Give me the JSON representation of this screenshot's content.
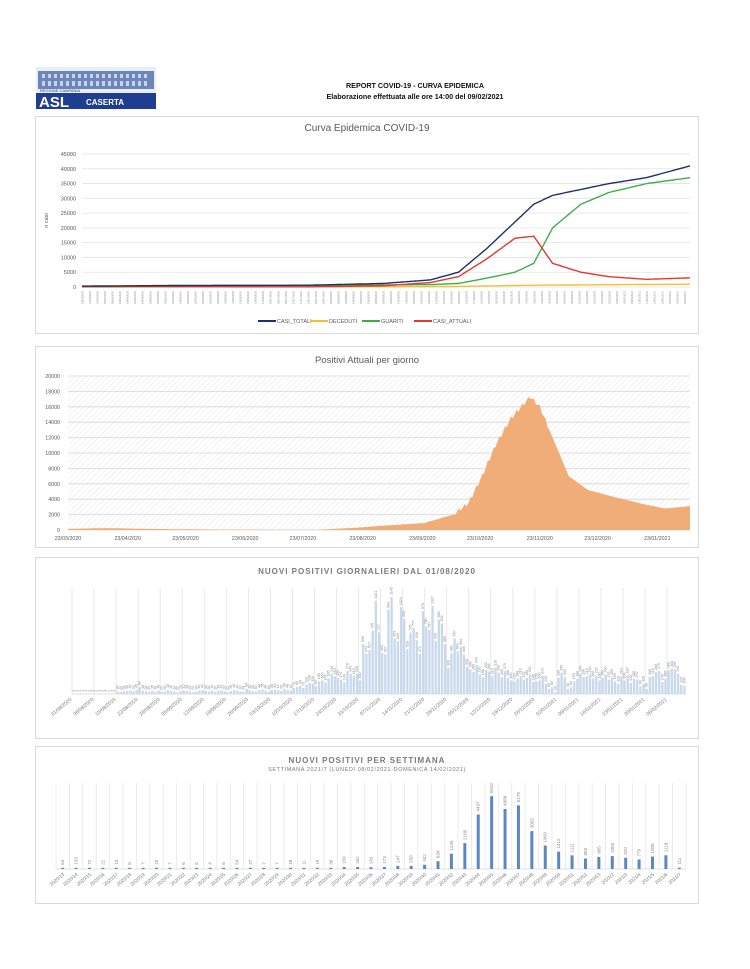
{
  "header": {
    "logo": {
      "top_text": "REGIONE CAMPANIA",
      "asl": "ASL",
      "city": "CASERTA"
    },
    "title": "REPORT COVID-19 - CURVA EPIDEMICA",
    "subtitle": "Elaborazione effettuata alle ore 14:00 del 09/02/2021"
  },
  "colors": {
    "casi_totali": "#1f2f6b",
    "deceduti": "#f2c037",
    "guariti": "#3fae49",
    "casi_attuali": "#e03a2f",
    "area_fill": "#f0ad78",
    "daily_bar": "#c9d9ec",
    "weekly_bar": "#5b88c4",
    "logo_blue": "#1f3e8f"
  },
  "chart_data": [
    {
      "id": "curva",
      "type": "line",
      "title": "Curva Epidemica COVID-19",
      "ylabel": "n casi",
      "ylim": [
        0,
        45000
      ],
      "yticks": [
        0,
        5000,
        10000,
        15000,
        20000,
        25000,
        30000,
        35000,
        40000,
        45000
      ],
      "x_start": "23/03/2020",
      "x_end": "09/02/2021",
      "x_tick_step_days": 4,
      "legend": [
        "CASI_TOTALI",
        "DECEDUTI",
        "GUARITI",
        "CASI_ATTUALI"
      ],
      "legend_position": "bottom",
      "series_keypoints_day_index": [
        0,
        60,
        120,
        160,
        185,
        200,
        215,
        230,
        240,
        250,
        265,
        280,
        300,
        323
      ],
      "series": [
        {
          "name": "CASI_TOTALI",
          "values": [
            300,
            550,
            600,
            1200,
            2400,
            5000,
            13000,
            22000,
            28000,
            31000,
            33000,
            35000,
            37000,
            41000
          ]
        },
        {
          "name": "DECEDUTI",
          "values": [
            20,
            60,
            70,
            90,
            120,
            200,
            350,
            500,
            600,
            650,
            700,
            780,
            850,
            950
          ]
        },
        {
          "name": "GUARITI",
          "values": [
            100,
            400,
            500,
            700,
            800,
            1200,
            3000,
            5000,
            8000,
            20000,
            28000,
            32000,
            35000,
            37000
          ]
        },
        {
          "name": "CASI_ATTUALI",
          "values": [
            180,
            100,
            50,
            400,
            1500,
            3500,
            9500,
            16500,
            17200,
            8000,
            5000,
            3500,
            2600,
            3100
          ]
        }
      ]
    },
    {
      "id": "attuali",
      "type": "area",
      "title": "Positivi Attuali per giorno",
      "ylim": [
        0,
        20000
      ],
      "yticks": [
        0,
        2000,
        4000,
        6000,
        8000,
        10000,
        12000,
        14000,
        16000,
        18000,
        20000
      ],
      "xticks": [
        "23/03/2020",
        "23/04/2020",
        "23/05/2020",
        "23/06/2020",
        "23/07/2020",
        "23/08/2020",
        "23/09/2020",
        "23/10/2020",
        "23/11/2020",
        "23/12/2020",
        "23/01/2021"
      ],
      "keypoints_day_index": [
        0,
        20,
        40,
        80,
        130,
        150,
        160,
        185,
        200,
        208,
        215,
        222,
        230,
        240,
        245,
        250,
        260,
        270,
        285,
        300,
        310,
        323
      ],
      "values": [
        150,
        250,
        150,
        50,
        40,
        300,
        500,
        900,
        2000,
        3500,
        7000,
        11000,
        14500,
        17300,
        16000,
        13000,
        7000,
        5200,
        4200,
        3300,
        2800,
        3100
      ]
    },
    {
      "id": "giornalieri",
      "type": "bar",
      "title": "NUOVI POSITIVI GIORNALIERI DAL 01/08/2020",
      "xticks": [
        "01/08/2020",
        "08/08/2020",
        "15/08/2020",
        "22/08/2020",
        "29/08/2020",
        "05/09/2020",
        "12/09/2020",
        "19/09/2020",
        "26/09/2020",
        "03/10/2020",
        "10/10/2020",
        "17/10/2020",
        "24/10/2020",
        "31/10/2020",
        "07/11/2020",
        "14/11/2020",
        "21/11/2020",
        "28/11/2020",
        "05/12/2020",
        "12/12/2020",
        "19/12/2020",
        "26/12/2020",
        "02/01/2021",
        "09/01/2021",
        "16/01/2021",
        "23/01/2021",
        "30/01/2021",
        "06/02/2021"
      ],
      "ylim": [
        0,
        1250
      ],
      "values": [
        3,
        2,
        4,
        1,
        3,
        2,
        5,
        2,
        1,
        4,
        3,
        2,
        6,
        3,
        30,
        25,
        28,
        35,
        40,
        32,
        45,
        80,
        38,
        30,
        25,
        35,
        28,
        40,
        22,
        30,
        48,
        36,
        28,
        20,
        33,
        42,
        38,
        29,
        20,
        30,
        40,
        44,
        35,
        28,
        40,
        25,
        38,
        42,
        30,
        22,
        35,
        46,
        40,
        30,
        28,
        60,
        40,
        35,
        30,
        48,
        55,
        38,
        30,
        45,
        52,
        42,
        36,
        60,
        48,
        40,
        70,
        85,
        95,
        70,
        110,
        130,
        120,
        90,
        150,
        160,
        135,
        185,
        240,
        210,
        190,
        170,
        140,
        270,
        240,
        210,
        235,
        160,
        590,
        473,
        517,
        745,
        1101,
        727,
        483,
        467,
        994,
        1145,
        653,
        626,
        1024,
        889,
        528,
        725,
        777,
        636,
        471,
        978,
        796,
        757,
        1037,
        626,
        880,
        833,
        589,
        309,
        480,
        657,
        504,
        554,
        468,
        318,
        290,
        260,
        344,
        230,
        198,
        282,
        266,
        210,
        310,
        250,
        200,
        270,
        190,
        160,
        150,
        180,
        210,
        170,
        190,
        230,
        140,
        150,
        160,
        214,
        120,
        60,
        80,
        20,
        190,
        250,
        200,
        60,
        80,
        150,
        180,
        240,
        200,
        210,
        230,
        180,
        220,
        160,
        190,
        230,
        170,
        200,
        150,
        120,
        210,
        160,
        220,
        130,
        180,
        170,
        90,
        120,
        60,
        200,
        210,
        260,
        270,
        140,
        180,
        280,
        300,
        290,
        240,
        110,
        100
      ]
    },
    {
      "id": "settimanali",
      "type": "bar",
      "title": "NUOVI POSITIVI PER SETTIMANA",
      "subtitle": "SETTIMANA 2021/7 (LUNEDÌ 08/02/2021-DOMENICA 14/02/2021)",
      "categories": [
        "2020/13",
        "2020/14",
        "2020/15",
        "2020/16",
        "2020/17",
        "2020/18",
        "2020/19",
        "2020/20",
        "2020/21",
        "2020/22",
        "2020/23",
        "2020/24",
        "2020/25",
        "2020/26",
        "2020/27",
        "2020/28",
        "2020/29",
        "2020/30",
        "2020/31",
        "2020/32",
        "2020/33",
        "2020/34",
        "2020/35",
        "2020/36",
        "2020/37",
        "2020/38",
        "2020/39",
        "2020/40",
        "2020/41",
        "2020/42",
        "2020/43",
        "2020/44",
        "2020/45",
        "2020/46",
        "2020/47",
        "2020/48",
        "2020/49",
        "2020/50",
        "2020/51",
        "2020/52",
        "2020/53",
        "2021/2",
        "2021/3",
        "2021/4",
        "2021/5",
        "2021/6",
        "2021/7"
      ],
      "values": [
        54,
        103,
        72,
        22,
        13,
        8,
        7,
        16,
        7,
        6,
        6,
        4,
        6,
        54,
        47,
        7,
        7,
        18,
        11,
        15,
        36,
        159,
        162,
        142,
        173,
        247,
        250,
        342,
        634,
        1245,
        2108,
        4437,
        5932,
        4888,
        5179,
        3082,
        1909,
        1412,
        1111,
        855,
        985,
        1055,
        920,
        779,
        1009,
        1118,
        111
      ],
      "ylim": [
        0,
        7000
      ]
    }
  ]
}
